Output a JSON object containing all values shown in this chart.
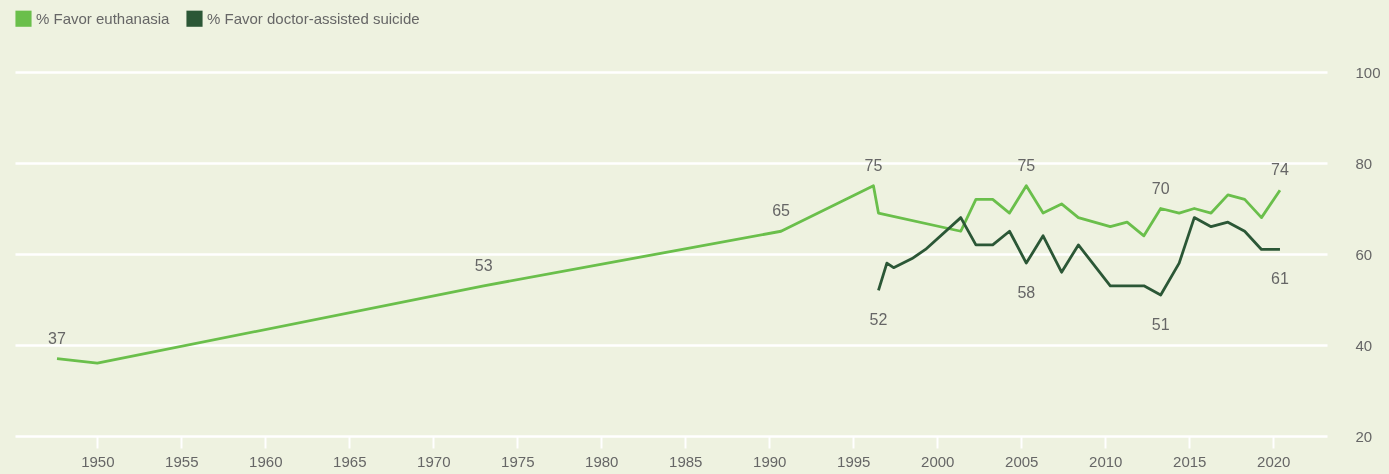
{
  "chart_data": {
    "type": "line",
    "series": [
      {
        "name": "% Favor euthanasia",
        "color": "#6abf4b",
        "x": [
          1947.6,
          1950,
          1973,
          1990.7,
          1996.2,
          1996.5,
          2001.4,
          2002.3,
          2003.3,
          2004.3,
          2005.3,
          2006.3,
          2007.4,
          2008.4,
          2010.3,
          2011.3,
          2012.3,
          2013.3,
          2014.4,
          2015.3,
          2016.3,
          2017.3,
          2018.3,
          2019.3,
          2020.4
        ],
        "values": [
          37,
          36,
          53,
          65,
          75,
          69,
          65,
          72,
          72,
          69,
          75,
          69,
          71,
          68,
          66,
          67,
          64,
          70,
          69,
          70,
          69,
          73,
          72,
          68,
          74
        ],
        "value_labels": [
          "37",
          null,
          "53",
          "65",
          "75",
          null,
          null,
          null,
          null,
          null,
          "75",
          null,
          null,
          null,
          null,
          null,
          null,
          "70",
          null,
          null,
          null,
          null,
          null,
          null,
          "74"
        ]
      },
      {
        "name": "% Favor doctor-assisted suicide",
        "color": "#2b5736",
        "x": [
          1996.5,
          1997,
          1997.4,
          1998.5,
          1999.3,
          2001.4,
          2002.3,
          2003.3,
          2004.3,
          2005.3,
          2006.3,
          2007.4,
          2008.4,
          2010.3,
          2012.3,
          2013.3,
          2014.4,
          2015.3,
          2016.3,
          2017.3,
          2018.3,
          2019.3,
          2020.4
        ],
        "values": [
          52,
          58,
          57,
          59,
          61,
          68,
          62,
          62,
          65,
          58,
          64,
          56,
          62,
          53,
          53,
          51,
          58,
          68,
          66,
          67,
          65,
          61,
          61
        ],
        "value_labels": [
          "52",
          null,
          null,
          null,
          null,
          null,
          null,
          null,
          null,
          "58",
          null,
          null,
          null,
          null,
          null,
          "51",
          null,
          null,
          null,
          null,
          null,
          null,
          "61"
        ]
      }
    ],
    "xlim": [
      1945.1,
      2023.2
    ],
    "xticks": [
      1950,
      1955,
      1960,
      1965,
      1970,
      1975,
      1980,
      1985,
      1990,
      1995,
      2000,
      2005,
      2010,
      2015,
      2020
    ],
    "ylim": [
      20,
      100
    ],
    "yticks": [
      20,
      40,
      60,
      80,
      100
    ],
    "grid": "y",
    "legend": "top left"
  }
}
